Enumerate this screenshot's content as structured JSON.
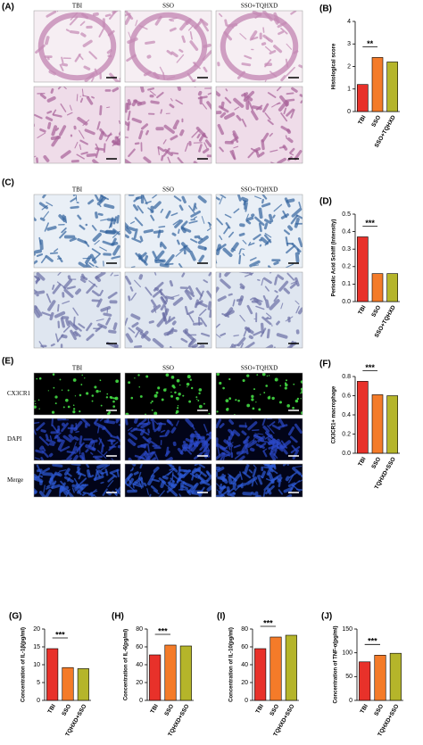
{
  "figure": {
    "panels": [
      {
        "label": "(A)",
        "columns": [
          "TBI",
          "SSO",
          "SSO+TQHXD"
        ]
      },
      {
        "label": "(C)",
        "columns": [
          "TBI",
          "SSO",
          "SSO+TQHXD"
        ]
      },
      {
        "label": "(E)",
        "columns": [
          "TBI",
          "SSO",
          "SSO+TQHXD"
        ],
        "rows": [
          "CX3CR1",
          "DAPI",
          "Merge"
        ]
      }
    ]
  },
  "chart_data": [
    {
      "type": "bar",
      "label": "(B)",
      "y_label": "Histological score",
      "categories": [
        "TBI",
        "SSO",
        "SSO+TQHXD"
      ],
      "values": [
        1.2,
        2.4,
        2.2
      ],
      "colors": [
        "#e8312a",
        "#f47b29",
        "#b5b52a"
      ],
      "ylim": [
        0,
        4
      ],
      "yticks": [
        0,
        1,
        2,
        3,
        4
      ],
      "annotation": "**"
    },
    {
      "type": "bar",
      "label": "(D)",
      "y_label": "Periodic Acid Schiff (Intensity)",
      "categories": [
        "TBI",
        "SSO",
        "SSO+TQHXD"
      ],
      "values": [
        0.37,
        0.16,
        0.16
      ],
      "colors": [
        "#e8312a",
        "#f47b29",
        "#b5b52a"
      ],
      "ylim": [
        0,
        0.5
      ],
      "yticks": [
        {
          "value": 0,
          "label": "0.0"
        },
        0.1,
        0.2,
        0.3,
        0.4,
        0.5
      ],
      "annotation": "***"
    },
    {
      "type": "bar",
      "label": "(F)",
      "y_label": "CX3CR1+ macrophage",
      "categories": [
        "TBI",
        "SSO",
        "TQHXD+SSO"
      ],
      "values": [
        0.75,
        0.61,
        0.6
      ],
      "colors": [
        "#e8312a",
        "#f47b29",
        "#b5b52a"
      ],
      "ylim": [
        0,
        0.8
      ],
      "yticks": [
        {
          "value": 0,
          "label": "0.0"
        },
        0.2,
        0.4,
        0.6,
        0.8
      ],
      "annotation": "***"
    },
    {
      "type": "bar",
      "label": "(G)",
      "y_label": "Concentration of IL-1β(pg/ml)",
      "categories": [
        "TBI",
        "SSO",
        "TQHXD+SSO"
      ],
      "values": [
        14.5,
        9.2,
        8.9
      ],
      "colors": [
        "#e8312a",
        "#f47b29",
        "#b5b52a"
      ],
      "ylim": [
        0,
        20
      ],
      "yticks": [
        0,
        5,
        10,
        15,
        20
      ],
      "annotation": "***"
    },
    {
      "type": "bar",
      "label": "(H)",
      "y_label": "Concentration of IL-6(pg/ml)",
      "categories": [
        "TBI",
        "SSO",
        "TQHXD+SSO"
      ],
      "values": [
        51,
        62,
        61
      ],
      "colors": [
        "#e8312a",
        "#f47b29",
        "#b5b52a"
      ],
      "ylim": [
        0,
        80
      ],
      "yticks": [
        0,
        20,
        40,
        60,
        80
      ],
      "annotation": "***"
    },
    {
      "type": "bar",
      "label": "(I)",
      "y_label": "Concentration of IL-10(pg/ml)",
      "categories": [
        "TBI",
        "SSO",
        "TQHXD+SSO"
      ],
      "values": [
        58,
        71,
        73
      ],
      "colors": [
        "#e8312a",
        "#f47b29",
        "#b5b52a"
      ],
      "ylim": [
        0,
        80
      ],
      "yticks": [
        0,
        20,
        40,
        60,
        80
      ],
      "annotation": "***"
    },
    {
      "type": "bar",
      "label": "(J)",
      "y_label": "Concentration of TNF-α(pg/ml)",
      "categories": [
        "TBI",
        "SSO",
        "TQHXD+SSO"
      ],
      "values": [
        81,
        95,
        99
      ],
      "colors": [
        "#e8312a",
        "#f47b29",
        "#b5b52a"
      ],
      "ylim": [
        0,
        150
      ],
      "yticks": [
        0,
        50,
        100,
        150
      ],
      "annotation": "***"
    }
  ]
}
